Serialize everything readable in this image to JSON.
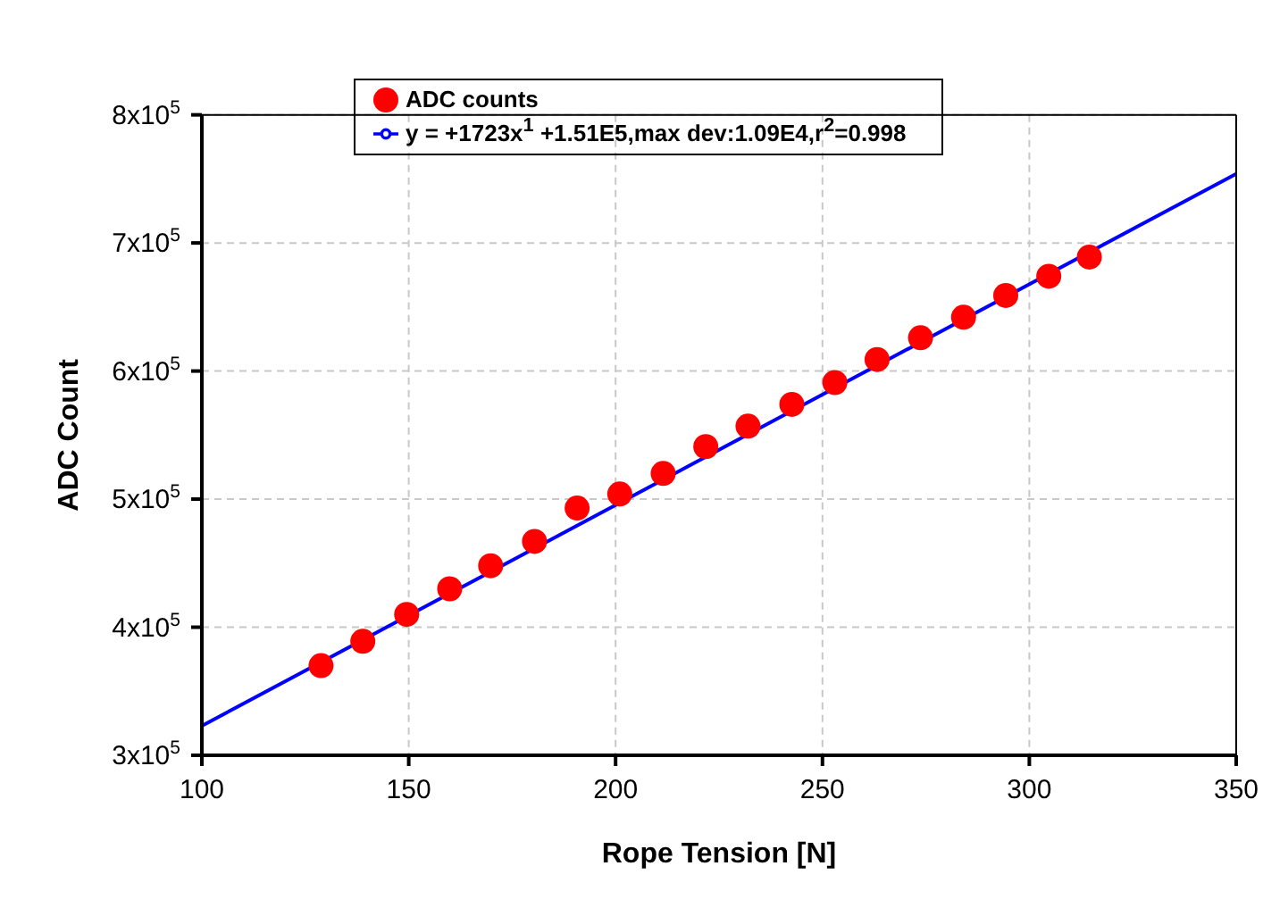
{
  "chart_data": {
    "type": "scatter",
    "xlabel": "Rope Tension [N]",
    "ylabel": "ADC Count",
    "xlim": [
      100,
      350
    ],
    "xticks": [
      100,
      150,
      200,
      250,
      300,
      350
    ],
    "ylim": [
      300000,
      800000
    ],
    "yticks": [
      {
        "value": 300000,
        "label": "3x10$^{5}$"
      },
      {
        "value": 400000,
        "label": "4x10$^{5}$"
      },
      {
        "value": 500000,
        "label": "5x10$^{5}$"
      },
      {
        "value": 600000,
        "label": "6x10$^{5}$"
      },
      {
        "value": 700000,
        "label": "7x10$^{5}$"
      },
      {
        "value": 800000,
        "label": "8x10$^{5}$"
      }
    ],
    "grid": true,
    "legend": "top",
    "series": [
      {
        "name": "ADC counts",
        "marker": "circle",
        "color": "#ff0000",
        "x": [
          128.8,
          138.9,
          149.5,
          159.9,
          169.8,
          180.4,
          190.7,
          201.0,
          211.5,
          221.8,
          232.0,
          242.6,
          253.0,
          263.2,
          273.7,
          284.1,
          294.3,
          304.7,
          314.5
        ],
        "values": [
          370000,
          389000,
          410000,
          430000,
          448000,
          467000,
          493000,
          504000,
          520000,
          541000,
          557000,
          574000,
          591000,
          609000,
          626000,
          642000,
          659000,
          674000,
          689000
        ]
      },
      {
        "name": "y = +1723x$^{1}$ +1.51E5,max dev:1.09E4,r$^{2}$=0.998",
        "type": "line",
        "marker": "none",
        "line_style": "solid",
        "color": "#0000ff",
        "x": [
          100,
          350
        ],
        "values": [
          323000,
          754000
        ]
      }
    ]
  }
}
